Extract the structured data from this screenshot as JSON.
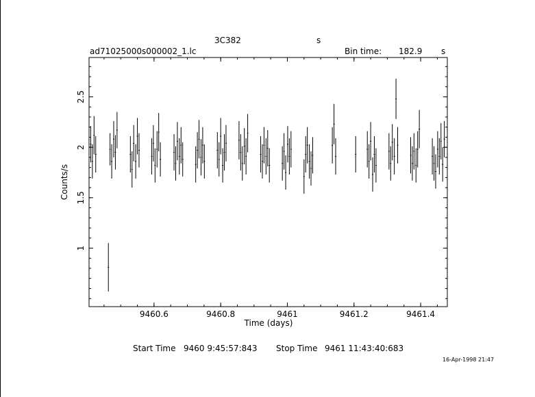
{
  "header": {
    "source_name": "3C382",
    "source_suffix": "s",
    "file_name": "ad71025000s000002_1.lc",
    "bin_time_label": "Bin time:",
    "bin_time_value": "182.9",
    "bin_time_unit": "s"
  },
  "footer": {
    "start_label": "Start Time",
    "start_value": "9460  9:45:57:843",
    "stop_label": "Stop Time",
    "stop_value": "9461 11:43:40:683",
    "date_stamp": "16-Apr-1998 21:47"
  },
  "chart_data": {
    "type": "scatter",
    "xlabel": "Time (days)",
    "ylabel": "Counts/s",
    "xlim": [
      9460.405,
      9461.48
    ],
    "ylim": [
      0.42,
      2.89
    ],
    "xticks": [
      {
        "value": 9460.6,
        "label": "9460.6"
      },
      {
        "value": 9460.8,
        "label": "9460.8"
      },
      {
        "value": 9461.0,
        "label": "9461"
      },
      {
        "value": 9461.2,
        "label": "9461.2"
      },
      {
        "value": 9461.4,
        "label": "9461.4"
      }
    ],
    "yticks": [
      {
        "value": 1.0,
        "label": "1"
      },
      {
        "value": 1.5,
        "label": "1.5"
      },
      {
        "value": 2.0,
        "label": "2"
      },
      {
        "value": 2.5,
        "label": "2.5"
      }
    ],
    "series": [
      {
        "style": "error-bars",
        "x": [
          9460.41,
          9460.415,
          9460.42,
          9460.425,
          9460.463,
          9460.468,
          9460.473,
          9460.479,
          9460.484,
          9460.489,
          9460.529,
          9460.534,
          9460.539,
          9460.545,
          9460.55,
          9460.555,
          9460.593,
          9460.598,
          9460.603,
          9460.609,
          9460.614,
          9460.619,
          9460.66,
          9460.665,
          9460.67,
          9460.676,
          9460.681,
          9460.686,
          9460.725,
          9460.73,
          9460.735,
          9460.741,
          9460.746,
          9460.751,
          9460.79,
          9460.795,
          9460.8,
          9460.806,
          9460.811,
          9460.816,
          9460.855,
          9460.86,
          9460.865,
          9460.871,
          9460.876,
          9460.881,
          9460.92,
          9460.925,
          9460.93,
          9460.936,
          9460.941,
          9460.946,
          9460.985,
          9460.99,
          9460.995,
          9461.001,
          9461.006,
          9461.011,
          9461.05,
          9461.055,
          9461.06,
          9461.066,
          9461.071,
          9461.076,
          9461.135,
          9461.14,
          9461.145,
          9461.205,
          9461.24,
          9461.245,
          9461.25,
          9461.256,
          9461.261,
          9461.266,
          9461.305,
          9461.31,
          9461.315,
          9461.321,
          9461.326,
          9461.331,
          9461.37,
          9461.375,
          9461.38,
          9461.386,
          9461.391,
          9461.396,
          9461.435,
          9461.44,
          9461.445,
          9461.451,
          9461.456,
          9461.461,
          9461.466,
          9461.471
        ],
        "y": [
          2.03,
          1.86,
          2.12,
          1.93,
          0.81,
          1.98,
          1.86,
          2.08,
          1.95,
          2.17,
          1.93,
          1.78,
          2.04,
          1.86,
          2.11,
          1.97,
          1.91,
          2.04,
          1.82,
          1.98,
          2.15,
          1.88,
          1.95,
          1.84,
          2.06,
          1.91,
          2.02,
          1.88,
          1.83,
          1.97,
          2.08,
          1.9,
          2.02,
          1.86,
          1.97,
          1.88,
          2.11,
          1.82,
          1.95,
          2.04,
          2.07,
          1.95,
          1.84,
          2.01,
          1.91,
          2.14,
          1.93,
          1.86,
          2.02,
          1.91,
          1.99,
          1.82,
          1.84,
          1.96,
          1.75,
          2.03,
          1.91,
          1.98,
          1.71,
          1.93,
          2.02,
          1.86,
          1.79,
          1.92,
          2.02,
          2.23,
          1.91,
          1.93,
          1.98,
          1.86,
          2.06,
          1.73,
          1.93,
          1.82,
          1.96,
          1.84,
          2.05,
          1.91,
          2.48,
          2.02,
          1.92,
          1.84,
          1.96,
          1.82,
          1.98,
          2.18,
          1.91,
          1.84,
          1.76,
          1.98,
          1.91,
          2.06,
          1.83,
          2.08
        ],
        "err": [
          0.18,
          0.17,
          0.19,
          0.18,
          0.24,
          0.16,
          0.17,
          0.18,
          0.17,
          0.18,
          0.18,
          0.18,
          0.18,
          0.17,
          0.18,
          0.17,
          0.18,
          0.18,
          0.17,
          0.18,
          0.19,
          0.17,
          0.18,
          0.17,
          0.19,
          0.18,
          0.18,
          0.17,
          0.18,
          0.18,
          0.19,
          0.18,
          0.18,
          0.17,
          0.18,
          0.17,
          0.18,
          0.17,
          0.18,
          0.18,
          0.19,
          0.18,
          0.17,
          0.18,
          0.18,
          0.19,
          0.18,
          0.17,
          0.18,
          0.18,
          0.18,
          0.17,
          0.17,
          0.18,
          0.17,
          0.18,
          0.18,
          0.18,
          0.17,
          0.18,
          0.18,
          0.17,
          0.17,
          0.18,
          0.18,
          0.2,
          0.18,
          0.18,
          0.18,
          0.17,
          0.19,
          0.17,
          0.18,
          0.17,
          0.18,
          0.17,
          0.18,
          0.18,
          0.2,
          0.18,
          0.18,
          0.17,
          0.18,
          0.17,
          0.18,
          0.19,
          0.18,
          0.17,
          0.17,
          0.18,
          0.18,
          0.18,
          0.17,
          0.18
        ]
      }
    ]
  }
}
